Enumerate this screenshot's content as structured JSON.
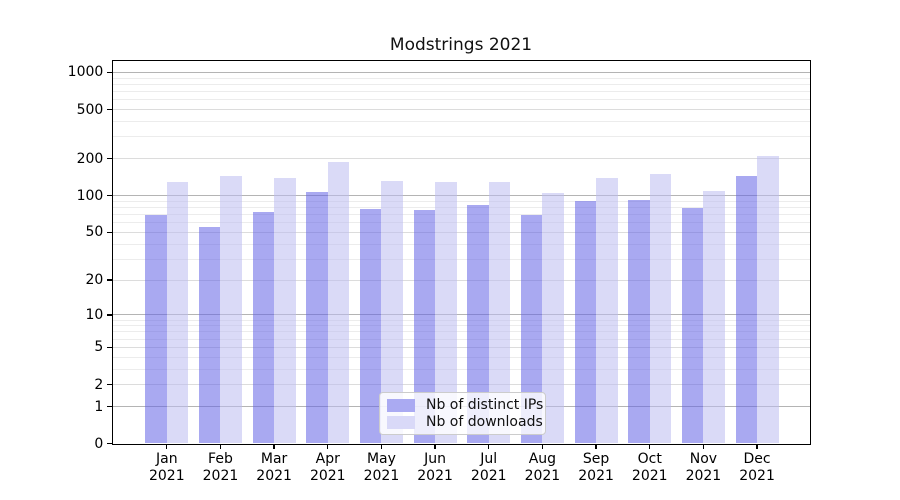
{
  "figure": {
    "background": "#ffffff"
  },
  "chart_data": {
    "type": "bar",
    "title": "Modstrings 2021",
    "xlabel": "",
    "ylabel": "",
    "yscale": "log1p",
    "ylim": [
      0,
      1250
    ],
    "grid": "on",
    "categories": [
      "Jan 2021",
      "Feb 2021",
      "Mar 2021",
      "Apr 2021",
      "May 2021",
      "Jun 2021",
      "Jul 2021",
      "Aug 2021",
      "Sep 2021",
      "Oct 2021",
      "Nov 2021",
      "Dec 2021"
    ],
    "x_tick_line1": [
      "Jan",
      "Feb",
      "Mar",
      "Apr",
      "May",
      "Jun",
      "Jul",
      "Aug",
      "Sep",
      "Oct",
      "Nov",
      "Dec"
    ],
    "x_tick_line2": "2021",
    "series": [
      {
        "name": "Nb of distinct IPs",
        "values": [
          70,
          55,
          74,
          108,
          78,
          77,
          84,
          69,
          90,
          92,
          79,
          145
        ],
        "fill_rgba": "rgba(99,99,230,0.55)",
        "swatch_hex": "#aaaaf2"
      },
      {
        "name": "Nb of downloads",
        "values": [
          130,
          144,
          140,
          187,
          132,
          130,
          130,
          105,
          138,
          150,
          110,
          210
        ],
        "fill_rgba": "rgba(188,188,241,0.55)",
        "swatch_hex": "#d9d9f8"
      }
    ],
    "yticks": [
      0,
      1,
      2,
      5,
      10,
      20,
      50,
      100,
      200,
      500,
      1000
    ],
    "ytick_labels": [
      "0",
      "1",
      "2",
      "5",
      "10",
      "20",
      "50",
      "100",
      "200",
      "500",
      "1000"
    ],
    "gridlines": {
      "major_values": [
        1,
        10,
        100,
        1000
      ],
      "mid_values": [
        2,
        5,
        20,
        50,
        200,
        500
      ],
      "minor_values": [
        3,
        4,
        6,
        7,
        8,
        9,
        30,
        40,
        60,
        70,
        80,
        90,
        300,
        400,
        600,
        700,
        800,
        900
      ],
      "major_color": "#b4b4b4",
      "mid_color": "#dcdcdc",
      "minor_color": "#ececec"
    },
    "legend": {
      "position": "lower center",
      "items": [
        {
          "label": "Nb of distinct IPs"
        },
        {
          "label": "Nb of downloads"
        }
      ]
    }
  }
}
